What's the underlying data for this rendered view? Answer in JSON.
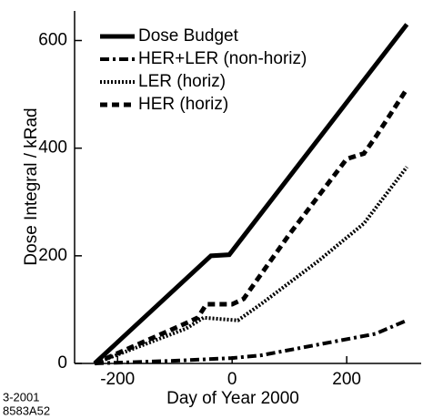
{
  "chart_data": {
    "type": "line",
    "xlabel": "Day of Year 2000",
    "ylabel": "Dose Integral / kRad",
    "annotations": [
      "3-2001",
      "8583A52"
    ],
    "xlim": [
      -275,
      330
    ],
    "ylim": [
      0,
      655
    ],
    "xticks": [
      -200,
      0,
      200
    ],
    "yticks": [
      0,
      200,
      400,
      600
    ],
    "legend": "upper left",
    "series": [
      {
        "name": "Dose Budget",
        "color": "#000000",
        "style": "solid",
        "x": [
          -240,
          -37,
          -5,
          305
        ],
        "values": [
          0,
          200,
          202,
          630
        ]
      },
      {
        "name": "HER+LER (non-horiz)",
        "color": "#000000",
        "style": "dashdot",
        "x": [
          -240,
          -100,
          0,
          50,
          150,
          250,
          305
        ],
        "values": [
          0,
          5,
          10,
          15,
          35,
          55,
          80
        ]
      },
      {
        "name": "LER (horiz)",
        "color": "#000000",
        "style": "dotted",
        "x": [
          -240,
          -80,
          -50,
          10,
          50,
          150,
          230,
          305
        ],
        "values": [
          0,
          65,
          85,
          80,
          110,
          190,
          260,
          365
        ]
      },
      {
        "name": "HER (horiz)",
        "color": "#000000",
        "style": "dashed",
        "x": [
          -240,
          -80,
          -60,
          -45,
          0,
          20,
          100,
          200,
          230,
          250,
          305
        ],
        "values": [
          0,
          75,
          85,
          110,
          110,
          120,
          240,
          380,
          390,
          420,
          510
        ]
      }
    ]
  }
}
